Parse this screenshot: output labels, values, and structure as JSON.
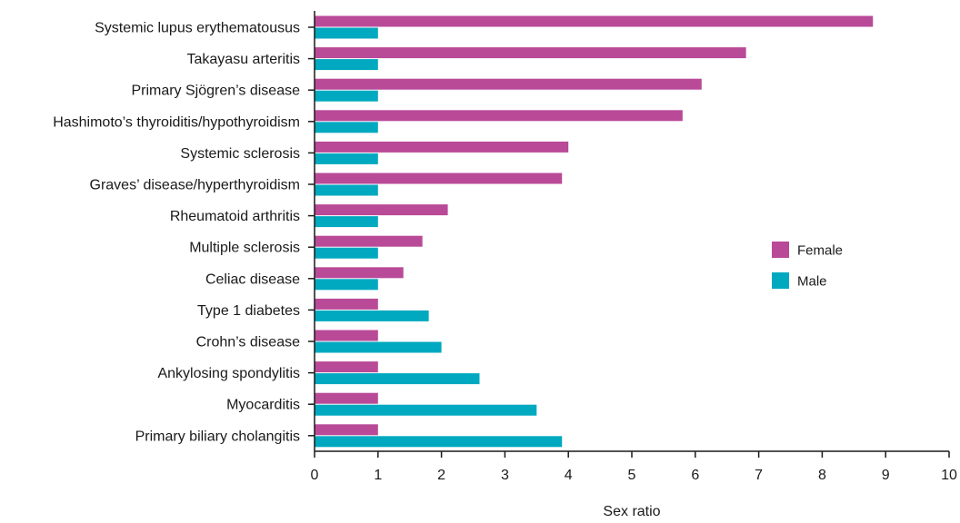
{
  "chart_data": {
    "type": "bar",
    "orientation": "horizontal",
    "categories": [
      "Systemic lupus erythematousus",
      "Takayasu arteritis",
      "Primary Sjögren’s disease",
      "Hashimoto’s thyroiditis/hypothyroidism",
      "Systemic sclerosis",
      "Graves’ disease/hyperthyroidism",
      "Rheumatoid arthritis",
      "Multiple sclerosis",
      "Celiac disease",
      "Type 1 diabetes",
      "Crohn’s disease",
      "Ankylosing spondylitis",
      "Myocarditis",
      "Primary biliary cholangitis"
    ],
    "series": [
      {
        "name": "Female",
        "color": "#b94a98",
        "values": [
          8.8,
          6.8,
          6.1,
          5.8,
          4.0,
          3.9,
          2.1,
          1.7,
          1.4,
          1.0,
          1.0,
          1.0,
          1.0,
          1.0
        ]
      },
      {
        "name": "Male",
        "color": "#00a9bf",
        "values": [
          1.0,
          1.0,
          1.0,
          1.0,
          1.0,
          1.0,
          1.0,
          1.0,
          1.0,
          1.8,
          2.0,
          2.6,
          3.5,
          3.9
        ]
      }
    ],
    "xlabel": "Sex ratio",
    "ylabel": "",
    "title": "",
    "xlim": [
      0,
      10
    ],
    "xticks": [
      0,
      1,
      2,
      3,
      4,
      5,
      6,
      7,
      8,
      9,
      10
    ],
    "grid": false,
    "legend_position": "right"
  }
}
